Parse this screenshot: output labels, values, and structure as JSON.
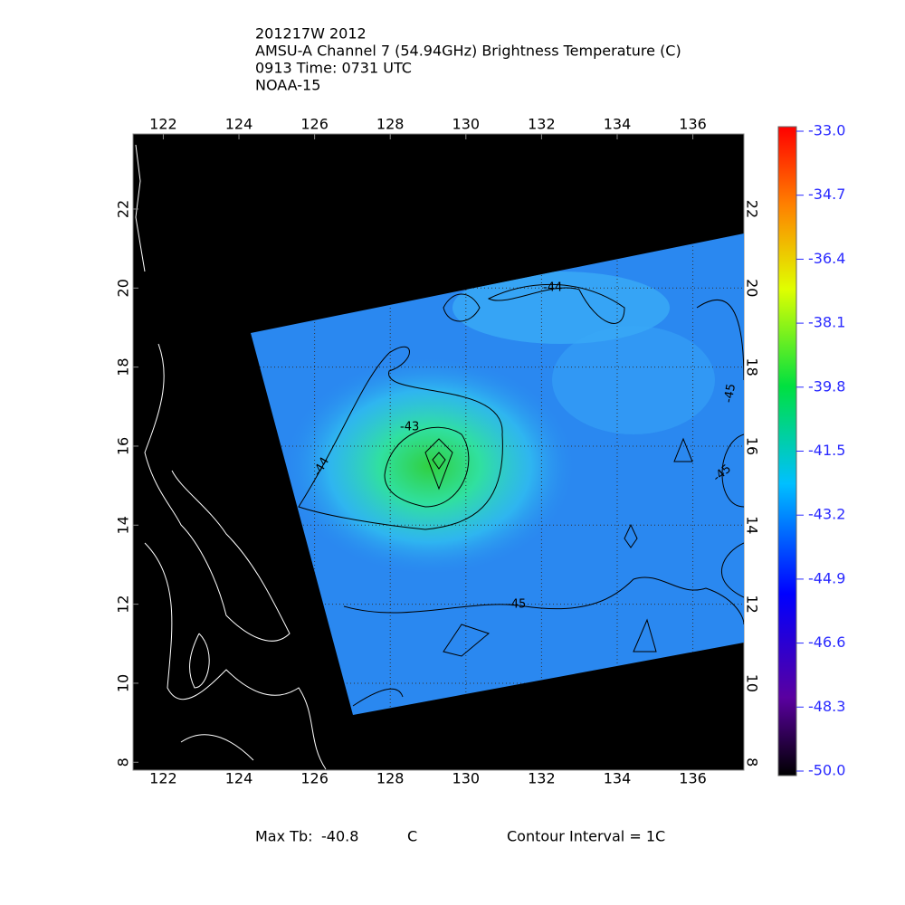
{
  "header": {
    "lines": [
      "201217W 2012",
      "AMSU-A Channel 7 (54.94GHz) Brightness Temperature (C)",
      "0913 Time: 0731 UTC",
      "NOAA-15"
    ]
  },
  "map": {
    "xlim": [
      121.2,
      137.35
    ],
    "ylim": [
      7.8,
      23.9
    ],
    "lon_ticks": [
      122,
      124,
      126,
      128,
      130,
      132,
      134,
      136
    ],
    "lat_ticks": [
      8,
      10,
      12,
      14,
      16,
      18,
      20,
      22
    ],
    "contour_labels": [
      -44,
      -43,
      -44,
      -45,
      -45,
      -45
    ]
  },
  "colorbar": {
    "lim": [
      -50,
      -33
    ],
    "ticks": [
      {
        "value": -33,
        "label": "-33.0"
      },
      {
        "value": -34.7,
        "label": "-34.7"
      },
      {
        "value": -36.4,
        "label": "-36.4"
      },
      {
        "value": -38.1,
        "label": "-38.1"
      },
      {
        "value": -39.8,
        "label": "-39.8"
      },
      {
        "value": -41.5,
        "label": "-41.5"
      },
      {
        "value": -43.2,
        "label": "-43.2"
      },
      {
        "value": -44.9,
        "label": "-44.9"
      },
      {
        "value": -46.6,
        "label": "-46.6"
      },
      {
        "value": -48.3,
        "label": "-48.3"
      },
      {
        "value": -50,
        "label": "-50.0"
      }
    ]
  },
  "footer": {
    "max_label": "Max Tb:",
    "max_value": -40.8,
    "max_unit": "C",
    "contour_interval": "Contour Interval = 1C"
  }
}
